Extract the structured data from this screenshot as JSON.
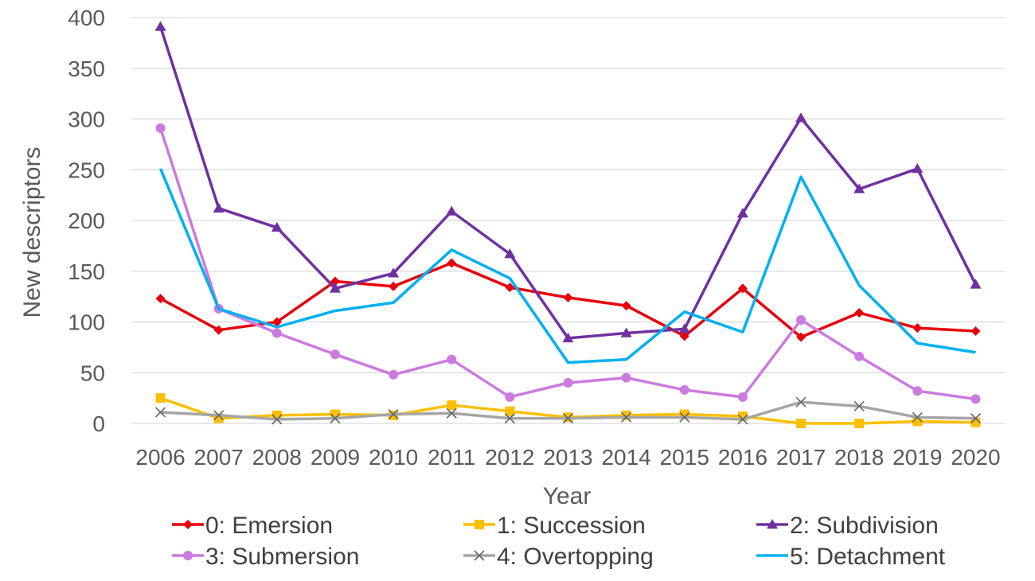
{
  "chart_data": {
    "type": "line",
    "title": "",
    "xlabel": "Year",
    "ylabel": "New descriptors",
    "ylim": [
      0,
      400
    ],
    "yticks": [
      0,
      50,
      100,
      150,
      200,
      250,
      300,
      350,
      400
    ],
    "grid": true,
    "legend_position": "bottom",
    "categories": [
      "2006",
      "2007",
      "2008",
      "2009",
      "2010",
      "2011",
      "2012",
      "2013",
      "2014",
      "2015",
      "2016",
      "2017",
      "2018",
      "2019",
      "2020"
    ],
    "series": [
      {
        "name": "0: Emersion",
        "color": "#e8000b",
        "marker": "diamond",
        "values": [
          123,
          92,
          100,
          140,
          135,
          158,
          134,
          124,
          116,
          86,
          133,
          85,
          109,
          94,
          91
        ]
      },
      {
        "name": "1: Succession",
        "color": "#fdbf00",
        "marker": "square",
        "values": [
          25,
          5,
          8,
          9,
          8,
          18,
          12,
          6,
          8,
          9,
          7,
          0,
          0,
          2,
          1
        ]
      },
      {
        "name": "2: Subdivision",
        "color": "#7030a0",
        "marker": "triangle",
        "values": [
          391,
          212,
          193,
          133,
          148,
          209,
          167,
          84,
          89,
          93,
          207,
          301,
          231,
          251,
          137
        ]
      },
      {
        "name": "3: Submersion",
        "color": "#cc7ae0",
        "marker": "circle",
        "values": [
          291,
          113,
          89,
          68,
          48,
          63,
          26,
          40,
          45,
          33,
          26,
          102,
          66,
          32,
          24
        ]
      },
      {
        "name": "4: Overtopping",
        "color": "#a5a5a5",
        "marker": "x",
        "values": [
          11,
          8,
          4,
          5,
          9,
          10,
          5,
          5,
          6,
          6,
          4,
          21,
          17,
          6,
          5
        ]
      },
      {
        "name": "5: Detachment",
        "color": "#00b0f0",
        "marker": "none",
        "values": [
          251,
          113,
          95,
          111,
          119,
          171,
          143,
          60,
          63,
          110,
          90,
          243,
          136,
          79,
          70
        ]
      }
    ]
  }
}
